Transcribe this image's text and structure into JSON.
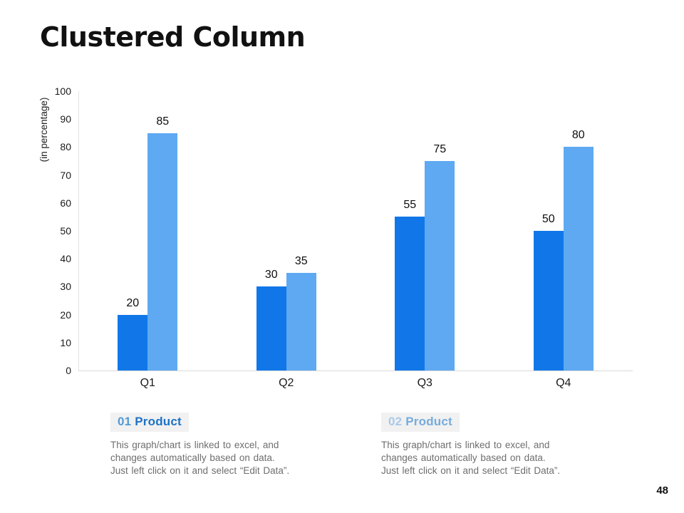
{
  "slide": {
    "title": "Clustered Column",
    "page_number": "48"
  },
  "chart_data": {
    "type": "bar",
    "title": "Clustered Column",
    "categories": [
      "Q1",
      "Q2",
      "Q3",
      "Q4"
    ],
    "series": [
      {
        "name": "01 Product",
        "color": "#1177e8",
        "values": [
          20,
          30,
          55,
          50
        ]
      },
      {
        "name": "02 Product",
        "color": "#5ea9f2",
        "values": [
          85,
          35,
          75,
          80
        ]
      }
    ],
    "xlabel": "",
    "ylabel": "(in percentage)",
    "ylim": [
      0,
      100
    ],
    "ytick_step": 10,
    "yticks": [
      0,
      10,
      20,
      30,
      40,
      50,
      60,
      70,
      80,
      90,
      100
    ],
    "grid": false,
    "value_labels": true,
    "legend_position": "below"
  },
  "legends": [
    {
      "number": "01",
      "label": "Product",
      "number_color": "#529ad6",
      "label_color": "#1e73c4",
      "body": [
        "This graph/chart is linked to excel, and",
        "changes automatically based on data.",
        "Just left click on it and select “Edit Data”."
      ]
    },
    {
      "number": "02",
      "label": "Product",
      "number_color": "#a9c9e9",
      "label_color": "#75acdd",
      "body": [
        "This graph/chart is linked to excel, and",
        "changes automatically based on data.",
        "Just left click on it and select “Edit Data”."
      ]
    }
  ]
}
